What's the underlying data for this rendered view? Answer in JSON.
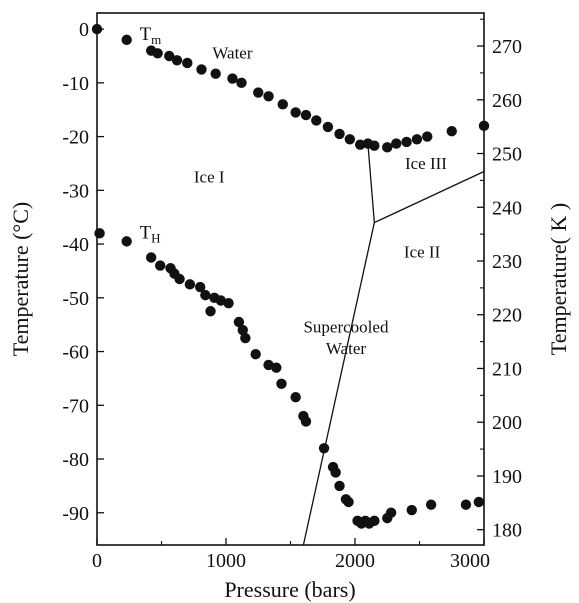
{
  "chart_data": {
    "type": "scatter",
    "xlabel": "Pressure (bars)",
    "ylabel": "Temperature (°C)",
    "ylabel_right": "Temperature( K )",
    "xlim": [
      0,
      3000
    ],
    "ylim": [
      -96,
      3
    ],
    "x_ticks": [
      0,
      1000,
      2000,
      3000
    ],
    "y_ticks": [
      0,
      -10,
      -20,
      -30,
      -40,
      -50,
      -60,
      -70,
      -80,
      -90
    ],
    "y_ticks_right_K": [
      180,
      190,
      200,
      210,
      220,
      230,
      240,
      250,
      260,
      270
    ],
    "grid": false,
    "series": [
      {
        "name": "Tm",
        "name_main": "T",
        "name_sub": "m",
        "label_at": [
          330,
          -2
        ],
        "points": [
          [
            0,
            0
          ],
          [
            230,
            -2
          ],
          [
            420,
            -4
          ],
          [
            470,
            -4.5
          ],
          [
            560,
            -5
          ],
          [
            620,
            -5.8
          ],
          [
            700,
            -6.3
          ],
          [
            810,
            -7.5
          ],
          [
            920,
            -8.3
          ],
          [
            1050,
            -9.2
          ],
          [
            1120,
            -10
          ],
          [
            1250,
            -11.8
          ],
          [
            1330,
            -12.5
          ],
          [
            1440,
            -14
          ],
          [
            1540,
            -15.5
          ],
          [
            1620,
            -16
          ],
          [
            1700,
            -17
          ],
          [
            1790,
            -18.2
          ],
          [
            1880,
            -19.5
          ],
          [
            1960,
            -20.5
          ],
          [
            2040,
            -21.5
          ],
          [
            2100,
            -21.3
          ],
          [
            2150,
            -21.7
          ],
          [
            2250,
            -22
          ],
          [
            2320,
            -21.3
          ],
          [
            2400,
            -21
          ],
          [
            2480,
            -20.5
          ],
          [
            2560,
            -20
          ],
          [
            2750,
            -19
          ],
          [
            3000,
            -18
          ]
        ]
      },
      {
        "name": "TH",
        "name_main": "T",
        "name_sub": "H",
        "label_at": [
          330,
          -39
        ],
        "points": [
          [
            20,
            -38
          ],
          [
            230,
            -39.5
          ],
          [
            420,
            -42.5
          ],
          [
            490,
            -44
          ],
          [
            570,
            -44.5
          ],
          [
            600,
            -45.5
          ],
          [
            640,
            -46.5
          ],
          [
            720,
            -47.5
          ],
          [
            800,
            -48
          ],
          [
            840,
            -49.5
          ],
          [
            910,
            -50
          ],
          [
            960,
            -50.5
          ],
          [
            1020,
            -51
          ],
          [
            880,
            -52.5
          ],
          [
            1100,
            -54.5
          ],
          [
            1130,
            -56
          ],
          [
            1150,
            -57.5
          ],
          [
            1230,
            -60.5
          ],
          [
            1330,
            -62.5
          ],
          [
            1390,
            -63
          ],
          [
            1430,
            -66
          ],
          [
            1540,
            -68.5
          ],
          [
            1600,
            -72
          ],
          [
            1620,
            -73
          ],
          [
            1760,
            -78
          ],
          [
            1830,
            -81.5
          ],
          [
            1850,
            -82.5
          ],
          [
            1880,
            -85
          ],
          [
            1930,
            -87.5
          ],
          [
            1950,
            -88
          ],
          [
            2020,
            -91.5
          ],
          [
            2050,
            -92
          ],
          [
            2080,
            -91.5
          ],
          [
            2110,
            -92
          ],
          [
            2150,
            -91.5
          ],
          [
            2280,
            -90
          ],
          [
            2250,
            -91
          ],
          [
            2440,
            -89.5
          ],
          [
            2590,
            -88.5
          ],
          [
            2860,
            -88.5
          ],
          [
            2960,
            -88
          ]
        ]
      }
    ],
    "phase_lines": [
      [
        [
          1600,
          -96
        ],
        [
          2150,
          -36
        ]
      ],
      [
        [
          2150,
          -36
        ],
        [
          2100,
          -21.3
        ]
      ],
      [
        [
          2150,
          -36
        ],
        [
          3000,
          -26.5
        ]
      ]
    ],
    "regions": [
      {
        "label": "Water",
        "at": [
          1050,
          -5.5
        ]
      },
      {
        "label": "Ice I",
        "at": [
          870,
          -28.5
        ]
      },
      {
        "label": "Ice III",
        "at": [
          2550,
          -26
        ]
      },
      {
        "label": "Ice II",
        "at": [
          2520,
          -42.5
        ]
      },
      {
        "label": "Supercooled",
        "at": [
          1930,
          -56.5
        ]
      },
      {
        "label": "Water",
        "at": [
          1930,
          -60.5
        ]
      }
    ]
  }
}
